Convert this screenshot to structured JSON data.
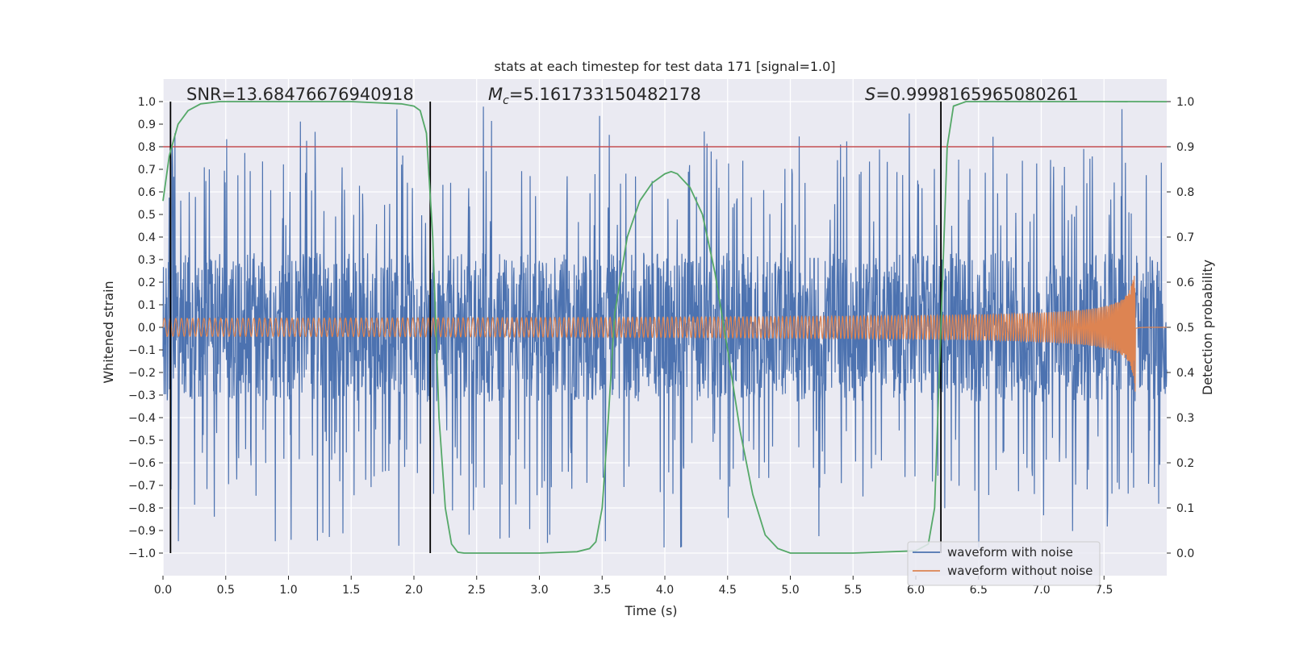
{
  "chart_data": {
    "type": "line",
    "title": "stats at each timestep for test data 171 [signal=1.0]",
    "xlabel": "Time (s)",
    "ylabel": "Whitened strain",
    "y2label": "Detection probability",
    "xlim": [
      0.0,
      8.0
    ],
    "ylim": [
      -1.1,
      1.1
    ],
    "y2lim": [
      -0.05,
      1.05
    ],
    "x_ticks": [
      "0.0",
      "0.5",
      "1.0",
      "1.5",
      "2.0",
      "2.5",
      "3.0",
      "3.5",
      "4.0",
      "4.5",
      "5.0",
      "5.5",
      "6.0",
      "6.5",
      "7.0",
      "7.5"
    ],
    "y_ticks": [
      "1.0",
      "0.9",
      "0.8",
      "0.7",
      "0.6",
      "0.5",
      "0.4",
      "0.3",
      "0.2",
      "0.1",
      "0.0",
      "−0.1",
      "−0.2",
      "−0.3",
      "−0.4",
      "−0.5",
      "−0.6",
      "−0.7",
      "−0.8",
      "−0.9",
      "−1.0"
    ],
    "y2_ticks": [
      "1.0",
      "0.9",
      "0.8",
      "0.7",
      "0.6",
      "0.5",
      "0.4",
      "0.3",
      "0.2",
      "0.1",
      "0.0"
    ],
    "annotations": {
      "snr": "SNR=13.68476676940918",
      "mc_symbol": "M",
      "mc_sub": "c",
      "mc_value": "=5.161733150482178",
      "s_symbol": "S",
      "s_value": "=0.9998165965080261"
    },
    "threshold": 0.9,
    "vlines": [
      0.06,
      2.13,
      6.2
    ],
    "series": [
      {
        "name": "waveform with noise",
        "color": "#4c72b0",
        "axis": "left",
        "description": "noisy whitened strain, approx. +/-0.4 band with spikes to +/-1.0"
      },
      {
        "name": "waveform without noise",
        "color": "#dd8452",
        "axis": "left",
        "amplitude_start": 0.03,
        "amplitude_end": 0.3,
        "merger_time": 7.75
      },
      {
        "name": "detection probability",
        "color": "#55a868",
        "axis": "right",
        "x": [
          0.0,
          0.05,
          0.12,
          0.2,
          0.3,
          0.45,
          0.6,
          1.0,
          1.5,
          1.9,
          2.0,
          2.05,
          2.1,
          2.15,
          2.2,
          2.25,
          2.3,
          2.35,
          2.4,
          2.5,
          3.0,
          3.3,
          3.4,
          3.45,
          3.5,
          3.55,
          3.6,
          3.7,
          3.8,
          3.9,
          4.0,
          4.05,
          4.1,
          4.2,
          4.3,
          4.4,
          4.5,
          4.6,
          4.7,
          4.8,
          4.9,
          5.0,
          5.5,
          6.0,
          6.1,
          6.15,
          6.2,
          6.25,
          6.3,
          6.4,
          7.0,
          7.5,
          8.0
        ],
        "y": [
          0.78,
          0.88,
          0.95,
          0.98,
          0.995,
          1.0,
          1.0,
          1.0,
          1.0,
          0.995,
          0.99,
          0.98,
          0.93,
          0.7,
          0.3,
          0.1,
          0.02,
          0.002,
          0.0,
          0.0,
          0.0,
          0.003,
          0.01,
          0.025,
          0.1,
          0.3,
          0.53,
          0.7,
          0.78,
          0.82,
          0.84,
          0.845,
          0.84,
          0.81,
          0.75,
          0.62,
          0.45,
          0.27,
          0.13,
          0.04,
          0.01,
          0.0,
          0.0,
          0.005,
          0.02,
          0.1,
          0.5,
          0.9,
          0.99,
          1.0,
          1.0,
          1.0,
          0.9998
        ]
      }
    ],
    "legend": {
      "placement": "bottom-right",
      "entries": [
        {
          "label": "waveform with noise",
          "color": "#4c72b0"
        },
        {
          "label": "waveform without noise",
          "color": "#dd8452"
        }
      ]
    },
    "colors": {
      "background": "#eaeaf2",
      "grid": "#ffffff",
      "threshold": "#c44e52",
      "vline": "#000000"
    }
  }
}
